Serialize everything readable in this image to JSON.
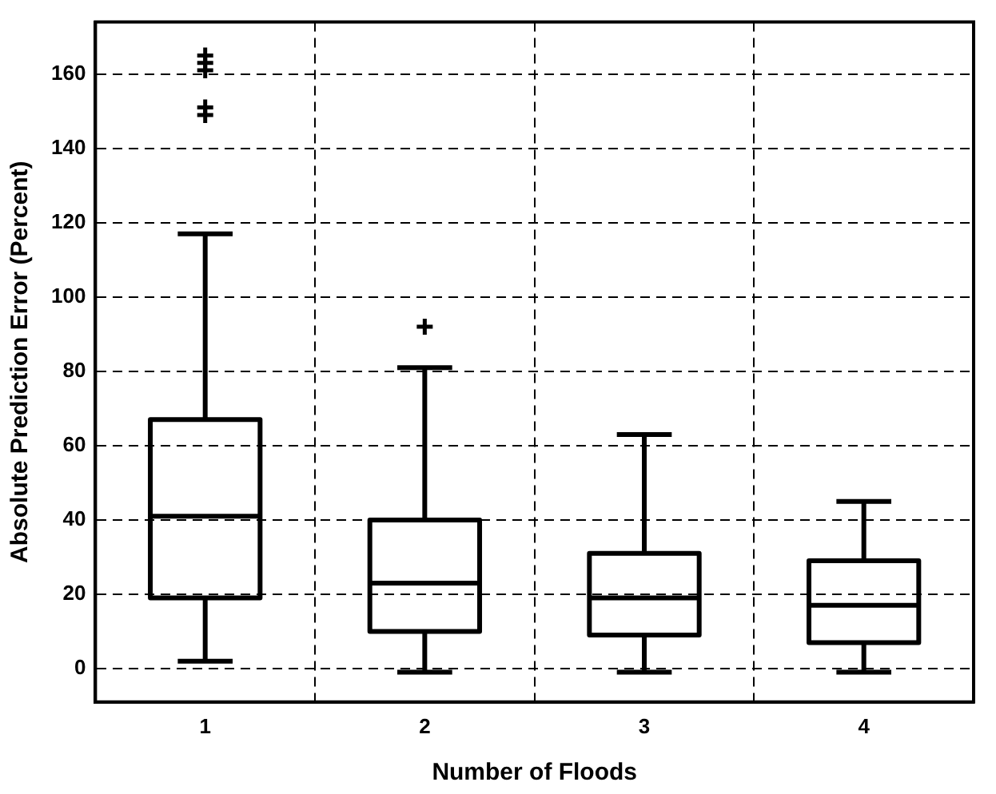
{
  "chart_data": {
    "type": "box",
    "xlabel": "Number of Floods",
    "ylabel": "Absolute Prediction Error (Percent)",
    "categories": [
      "1",
      "2",
      "3",
      "4"
    ],
    "boxes": [
      {
        "low": 2,
        "q1": 19,
        "median": 41,
        "q3": 67,
        "high": 117,
        "outliers": [
          149,
          151,
          161,
          163,
          165
        ]
      },
      {
        "low": -1,
        "q1": 10,
        "median": 23,
        "q3": 40,
        "high": 81,
        "outliers": [
          92
        ]
      },
      {
        "low": -1,
        "q1": 9,
        "median": 19,
        "q3": 31,
        "high": 63
      },
      {
        "low": -1,
        "q1": 7,
        "median": 17,
        "q3": 29,
        "high": 45
      }
    ],
    "color": "#000000",
    "ylim": [
      -9,
      174
    ],
    "yticks": [
      0,
      20,
      40,
      60,
      80,
      100,
      120,
      140,
      160
    ],
    "grid": true,
    "marker": "cross",
    "line_style": "dashed"
  }
}
